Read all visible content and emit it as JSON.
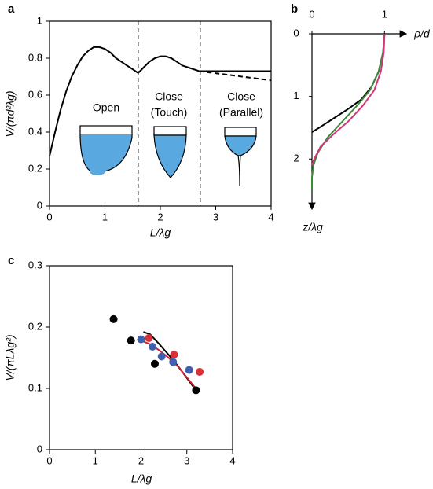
{
  "chart_data": [
    {
      "type": "line",
      "panel": "a",
      "xlabel": "L/λg",
      "ylabel": "V/(πd²λg)",
      "xlim": [
        0,
        4
      ],
      "ylim": [
        0,
        1
      ],
      "xticks": [
        0,
        1,
        2,
        3,
        4
      ],
      "yticks": [
        0,
        0.2,
        0.4,
        0.6,
        0.8,
        1
      ],
      "frame": "box",
      "vlines": [
        1.6,
        2.72
      ],
      "annotations": [
        "Open",
        "Close",
        "(Touch)",
        "Close",
        "(Parallel)"
      ],
      "series": [
        {
          "color": "#000000",
          "dashed": false,
          "x": [
            0,
            0.1,
            0.2,
            0.3,
            0.4,
            0.5,
            0.6,
            0.7,
            0.8,
            0.9,
            1.0,
            1.1,
            1.2,
            1.3,
            1.4,
            1.5,
            1.6,
            1.7,
            1.8,
            1.9,
            2.0,
            2.1,
            2.2,
            2.3,
            2.4,
            2.5,
            2.6,
            2.7
          ],
          "values": [
            0.27,
            0.4,
            0.52,
            0.62,
            0.7,
            0.76,
            0.81,
            0.84,
            0.86,
            0.86,
            0.85,
            0.83,
            0.8,
            0.78,
            0.76,
            0.74,
            0.72,
            0.75,
            0.78,
            0.8,
            0.81,
            0.81,
            0.8,
            0.78,
            0.76,
            0.75,
            0.74,
            0.73
          ]
        },
        {
          "color": "#000000",
          "dashed": false,
          "x": [
            2.7,
            4
          ],
          "values": [
            0.73,
            0.73
          ]
        },
        {
          "color": "#000000",
          "dashed": true,
          "x": [
            2.7,
            4
          ],
          "values": [
            0.73,
            0.68
          ]
        }
      ]
    },
    {
      "type": "line",
      "panel": "b",
      "xlabel": "ρ/d",
      "ylabel": "z/λg",
      "xlim": [
        0,
        1.3
      ],
      "ylim": [
        0,
        2.8
      ],
      "xticks": [
        0,
        1
      ],
      "yticks": [
        0,
        1,
        2
      ],
      "frame": "arrows",
      "y_inverted": true,
      "series": [
        {
          "color": "#000000",
          "dashed": false,
          "x": [
            1,
            0.98,
            0.92,
            0.82,
            0.68,
            0.5,
            0.3,
            0.1,
            0
          ],
          "values": [
            0,
            0.3,
            0.6,
            0.85,
            1.05,
            1.2,
            1.35,
            1.5,
            1.57
          ]
        },
        {
          "color": "#3a8a3a",
          "dashed": false,
          "x": [
            1,
            0.98,
            0.92,
            0.8,
            0.62,
            0.42,
            0.22,
            0.08,
            0.02,
            0,
            0
          ],
          "values": [
            0,
            0.3,
            0.6,
            0.9,
            1.15,
            1.4,
            1.65,
            1.9,
            2.1,
            2.3,
            2.5
          ]
        },
        {
          "color": "#d6337a",
          "dashed": false,
          "x": [
            1,
            0.99,
            0.95,
            0.86,
            0.7,
            0.5,
            0.3,
            0.12,
            0.03,
            0
          ],
          "values": [
            0,
            0.3,
            0.6,
            0.9,
            1.15,
            1.4,
            1.6,
            1.8,
            2.0,
            2.1
          ]
        }
      ]
    },
    {
      "type": "scatter",
      "panel": "c",
      "xlabel": "L/λg",
      "ylabel": "V/(πLλg²)",
      "xlim": [
        0,
        4
      ],
      "ylim": [
        0,
        0.3
      ],
      "xticks": [
        0,
        1,
        2,
        3,
        4
      ],
      "yticks": [
        0,
        0.1,
        0.2,
        0.3
      ],
      "frame": "box",
      "series": [
        {
          "color": "#000000",
          "mode": "line",
          "x": [
            2.05,
            2.2,
            2.4,
            2.6,
            2.8,
            3.0,
            3.2
          ],
          "values": [
            0.192,
            0.188,
            0.172,
            0.155,
            0.137,
            0.117,
            0.097
          ]
        },
        {
          "color": "#c8202c",
          "mode": "line",
          "x": [
            2.0,
            2.2,
            2.4,
            2.6,
            2.8,
            3.0,
            3.25
          ],
          "values": [
            0.178,
            0.172,
            0.162,
            0.15,
            0.136,
            0.118,
            0.095
          ]
        },
        {
          "color": "#000000",
          "mode": "markers",
          "x": [
            1.4,
            1.78,
            2.3,
            3.2
          ],
          "values": [
            0.213,
            0.178,
            0.14,
            0.097
          ]
        },
        {
          "color": "#3f5fb0",
          "mode": "markers",
          "x": [
            2.0,
            2.25,
            2.45,
            2.7,
            3.05
          ],
          "values": [
            0.18,
            0.168,
            0.152,
            0.143,
            0.13
          ]
        },
        {
          "color": "#d9303a",
          "mode": "markers",
          "x": [
            2.17,
            2.72,
            3.28
          ],
          "values": [
            0.182,
            0.155,
            0.127
          ]
        }
      ]
    }
  ]
}
